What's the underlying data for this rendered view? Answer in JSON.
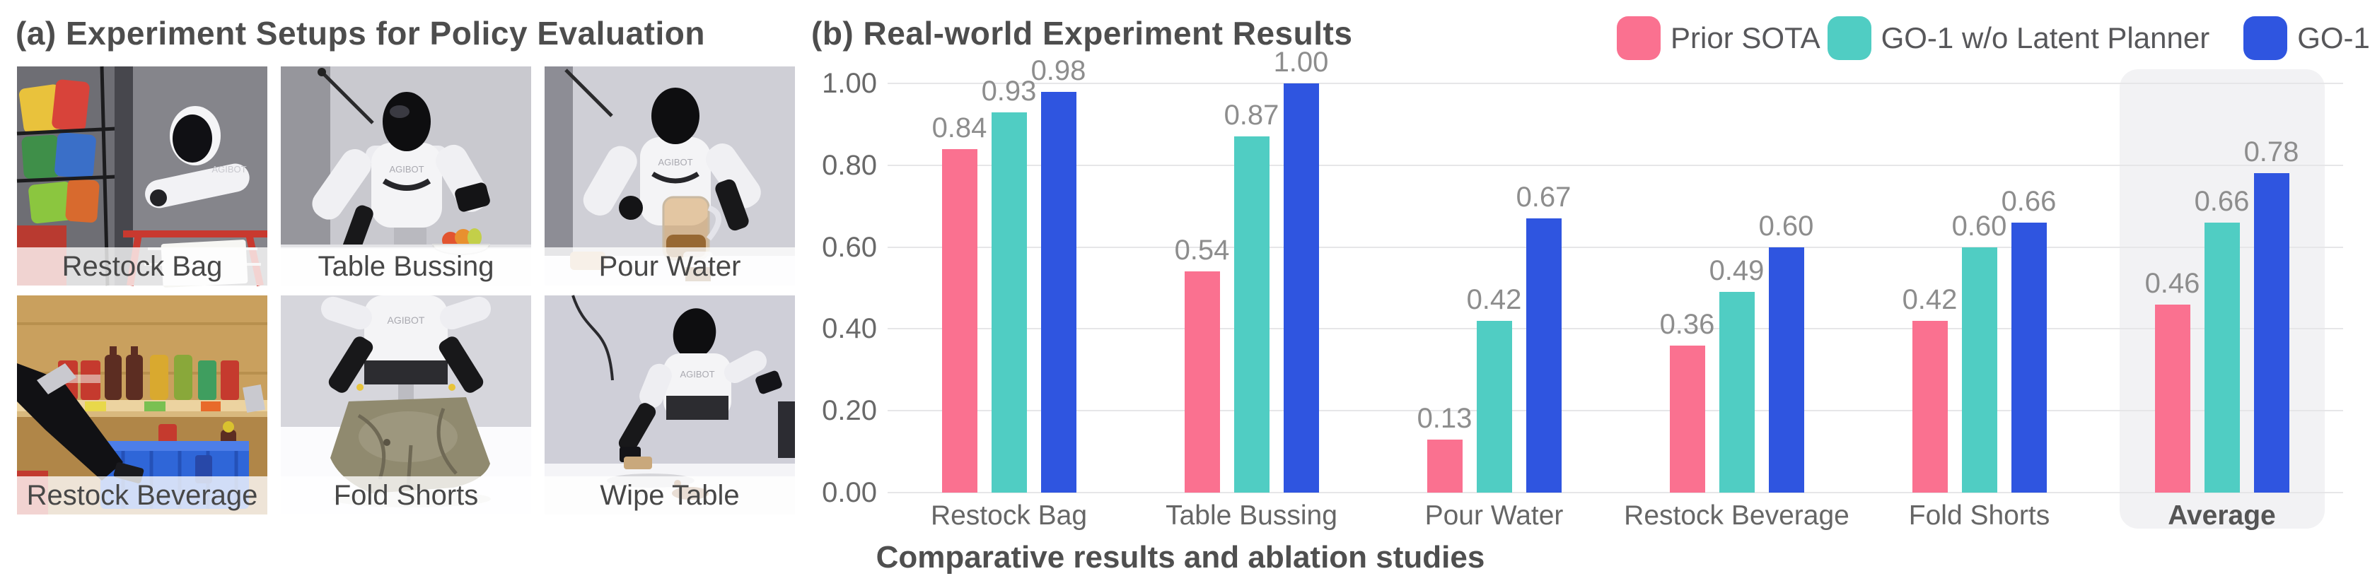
{
  "panel_a": {
    "title": "(a) Experiment Setups for Policy Evaluation",
    "robot_brand": "AGIBOT",
    "setups": [
      {
        "label": "Restock Bag"
      },
      {
        "label": "Table Bussing"
      },
      {
        "label": "Pour Water"
      },
      {
        "label": "Restock Beverage"
      },
      {
        "label": "Fold Shorts"
      },
      {
        "label": "Wipe Table"
      }
    ]
  },
  "panel_b": {
    "title": "(b) Real-world Experiment Results",
    "caption": "Comparative results and ablation studies"
  },
  "chart_data": {
    "type": "bar",
    "title": "(b) Real-world Experiment Results",
    "categories": [
      "Restock Bag",
      "Table Bussing",
      "Pour Water",
      "Restock Beverage",
      "Fold Shorts",
      "Average"
    ],
    "series": [
      {
        "name": "Prior SOTA",
        "color": "#FA7190",
        "values": [
          0.84,
          0.54,
          0.13,
          0.36,
          0.42,
          0.46
        ]
      },
      {
        "name": "GO-1 w/o Latent Planner",
        "color": "#50CDC3",
        "values": [
          0.93,
          0.87,
          0.42,
          0.49,
          0.6,
          0.66
        ]
      },
      {
        "name": "GO-1",
        "color": "#2F55E0",
        "values": [
          0.98,
          1.0,
          0.67,
          0.6,
          0.66,
          0.78
        ]
      }
    ],
    "xlabel": "",
    "ylabel": "",
    "ylim": [
      0,
      1.0
    ],
    "ytick_labels": [
      "0.00",
      "0.20",
      "0.40",
      "0.60",
      "0.80",
      "1.00"
    ],
    "grid": true,
    "legend_position": "top-right",
    "highlighted_category": "Average",
    "caption": "Comparative results and ablation studies",
    "colors": {
      "grid": "#e6e6e8",
      "tick_text": "#696969",
      "value_text": "#8d8d8d",
      "category_text": "#666666",
      "highlight_bg": "#f2f2f4"
    }
  }
}
